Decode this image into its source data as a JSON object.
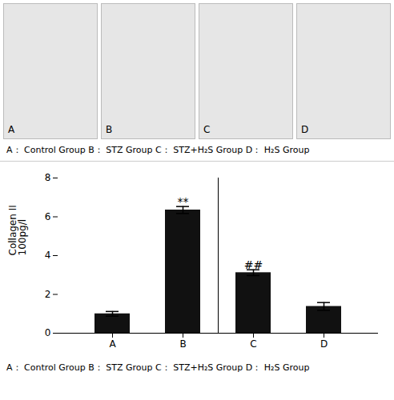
{
  "chart_data": {
    "type": "bar",
    "categories": [
      "A",
      "B",
      "C",
      "D"
    ],
    "values": [
      1.0,
      6.35,
      3.12,
      1.38
    ],
    "errors": [
      0.12,
      0.18,
      0.15,
      0.2
    ],
    "color": "#111111",
    "ylim": [
      0,
      8
    ],
    "yticks": [
      0,
      2,
      4,
      6,
      8
    ],
    "ylabel": "Collagen II\n100pg/l",
    "grid": false,
    "annotations": [
      {
        "x": "B",
        "y": 6.58,
        "text": "**"
      },
      {
        "x": "C",
        "y": 3.32,
        "text": "##"
      }
    ],
    "subtitle": "A：  Control Group    B：  STZ Group    C：  STZ+H₂S Group    D：  H₂S Group",
    "caption": "A：  Control Group    B：  STZ Group    C：  STZ+H₂S Group    D：  H₂S Group"
  }
}
